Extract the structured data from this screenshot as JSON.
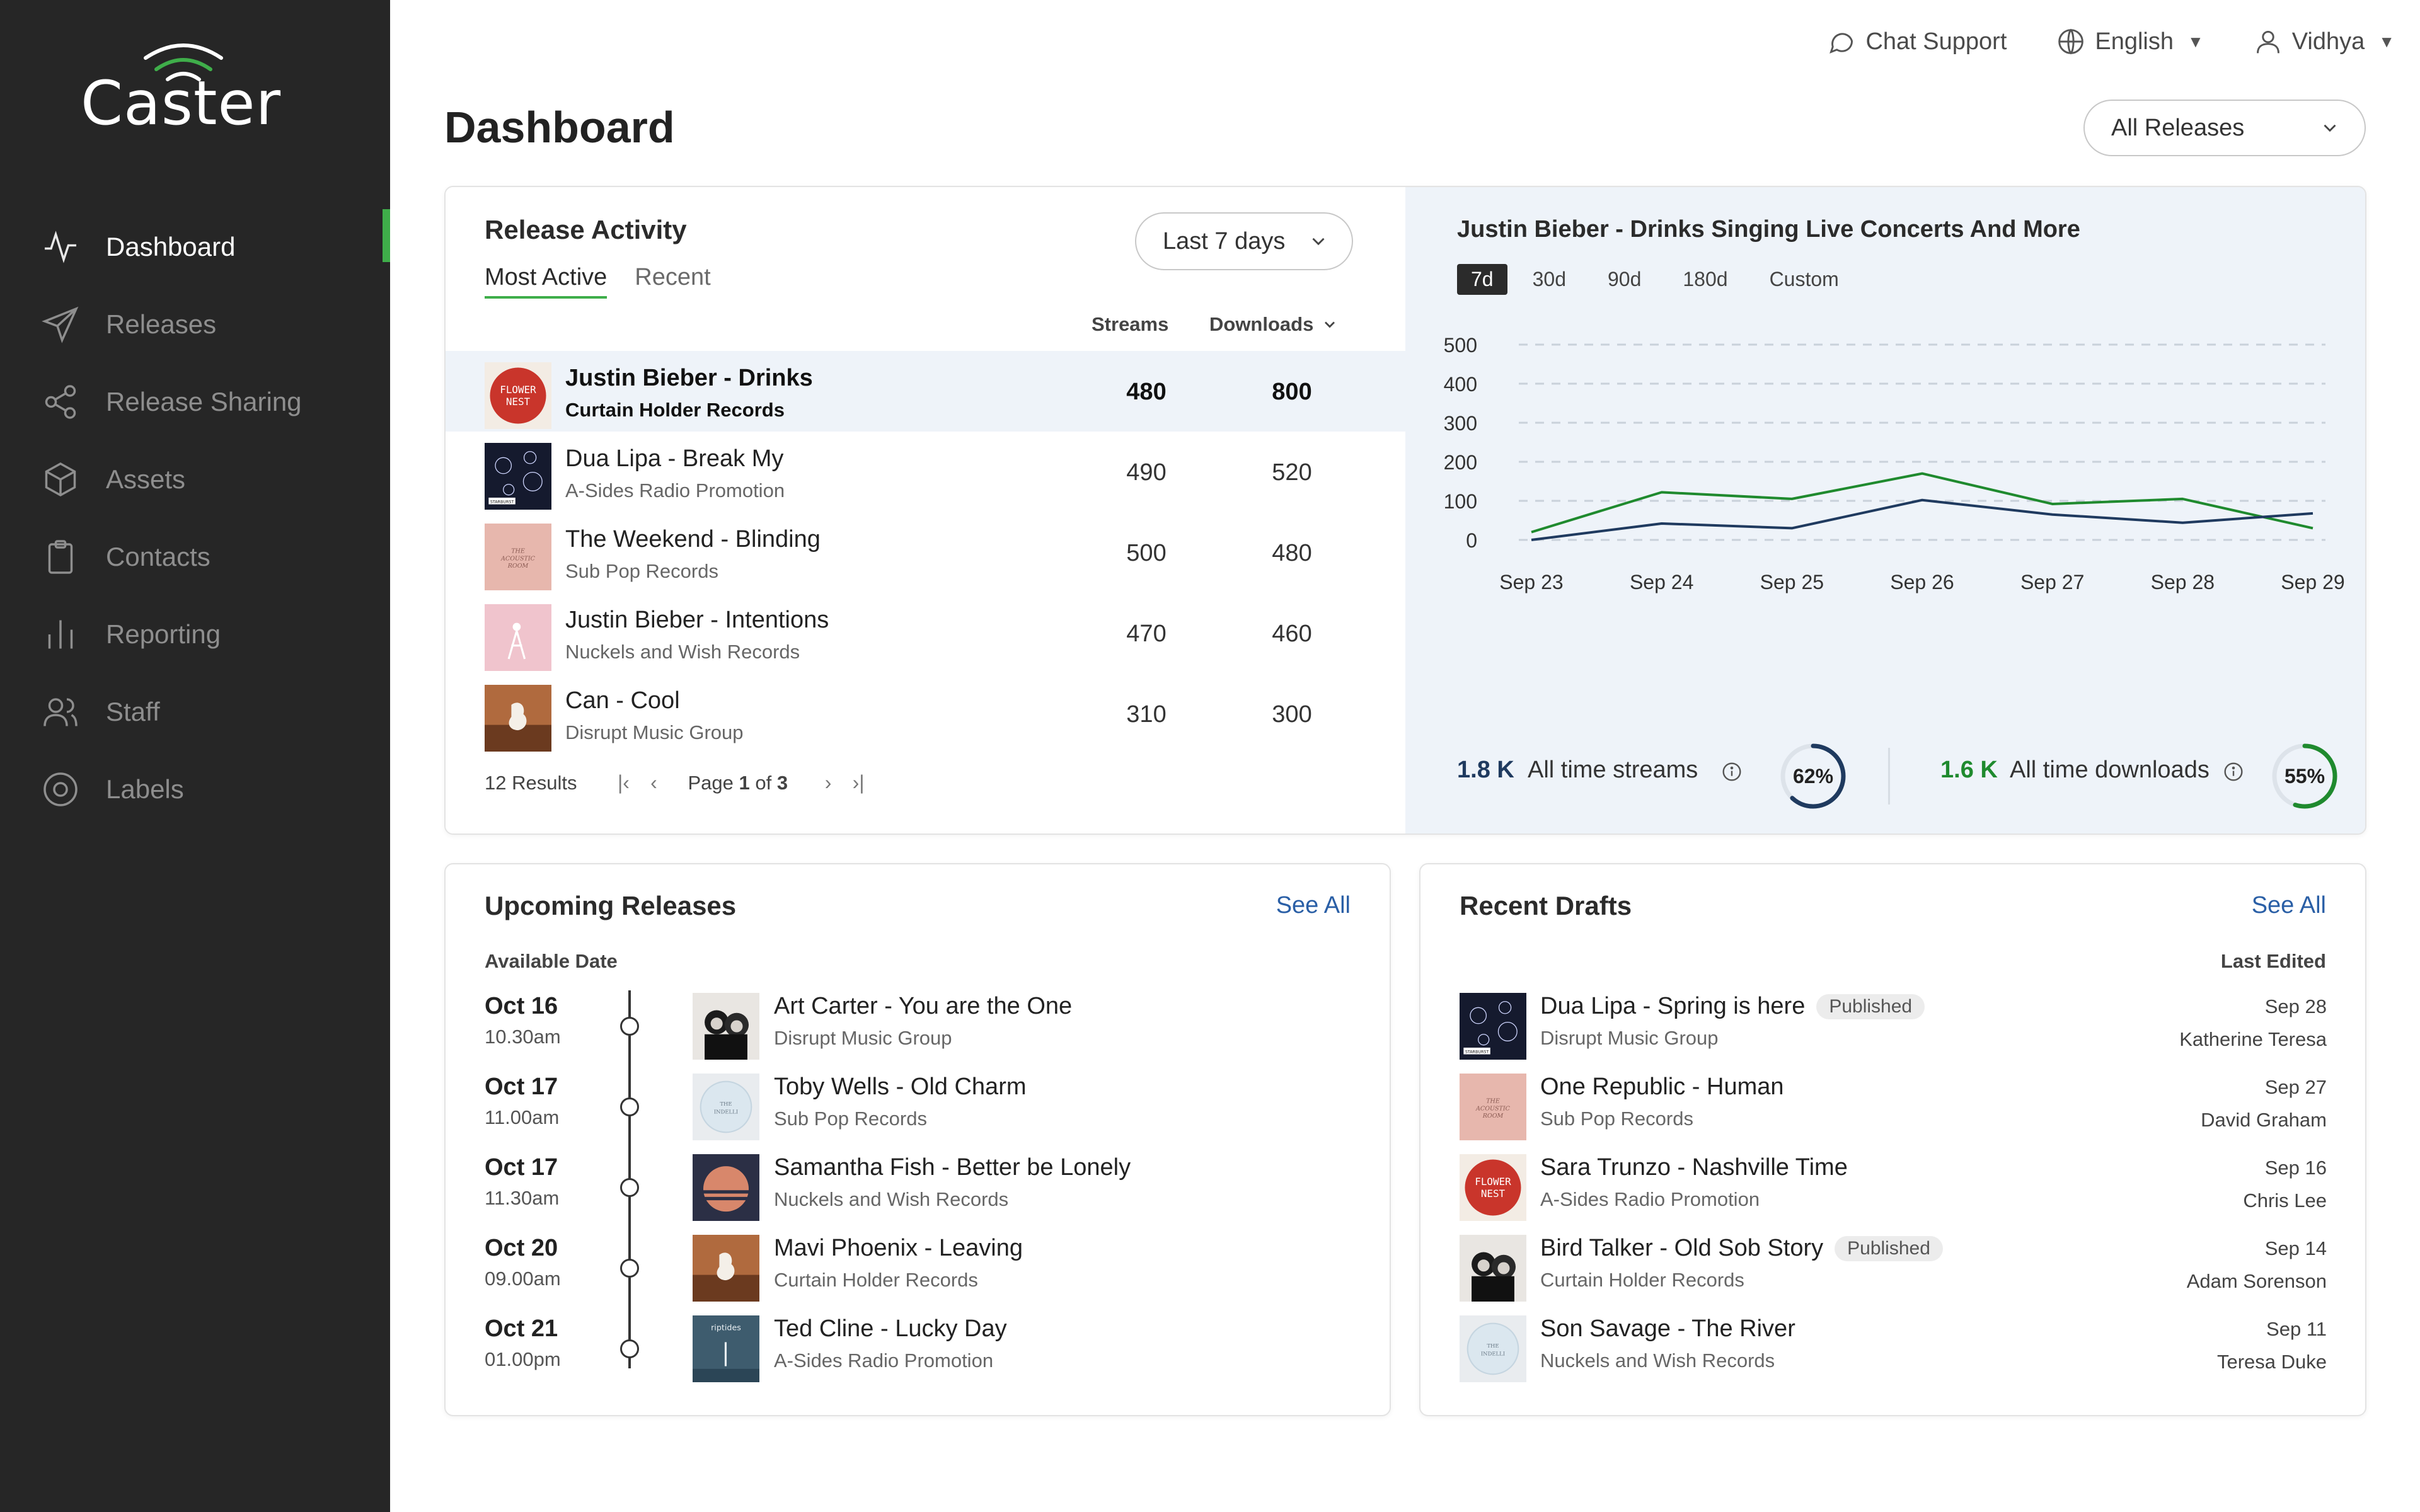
{
  "app": {
    "logo": "Caster"
  },
  "sidebar": {
    "items": [
      {
        "label": "Dashboard",
        "icon": "activity-icon",
        "active": true
      },
      {
        "label": "Releases",
        "icon": "send-icon"
      },
      {
        "label": "Release Sharing",
        "icon": "share-icon"
      },
      {
        "label": "Assets",
        "icon": "box-icon"
      },
      {
        "label": "Contacts",
        "icon": "clipboard-icon"
      },
      {
        "label": "Reporting",
        "icon": "bar-chart-icon"
      },
      {
        "label": "Staff",
        "icon": "users-icon"
      },
      {
        "label": "Labels",
        "icon": "disc-icon"
      }
    ]
  },
  "topbar": {
    "chat": "Chat Support",
    "language": "English",
    "user": "Vidhya"
  },
  "page": {
    "title": "Dashboard",
    "release_filter": "All Releases"
  },
  "release_activity": {
    "title": "Release Activity",
    "period": "Last 7 days",
    "tabs": [
      "Most Active",
      "Recent"
    ],
    "col_streams": "Streams",
    "col_downloads": "Downloads",
    "rows": [
      {
        "title": "Justin Bieber - Drinks",
        "label": "Curtain Holder Records",
        "streams": "480",
        "downloads": "800",
        "cover": "flower-nest"
      },
      {
        "title": "Dua Lipa - Break My",
        "label": "A-Sides Radio Promotion",
        "streams": "490",
        "downloads": "520",
        "cover": "fireworks"
      },
      {
        "title": "The Weekend - Blinding",
        "label": "Sub Pop Records",
        "streams": "500",
        "downloads": "480",
        "cover": "acoustic-room"
      },
      {
        "title": "Justin Bieber - Intentions",
        "label": "Nuckels and Wish Records",
        "streams": "470",
        "downloads": "460",
        "cover": "pink-tower"
      },
      {
        "title": "Can - Cool",
        "label": "Disrupt Music Group",
        "streams": "310",
        "downloads": "300",
        "cover": "bird"
      }
    ],
    "results": "12 Results",
    "page_prefix": "Page",
    "page_current": "1",
    "page_of": "of",
    "page_total": "3"
  },
  "chart": {
    "title": "Justin Bieber - Drinks Singing Live Concerts And More",
    "ranges": [
      "7d",
      "30d",
      "90d",
      "180d",
      "Custom"
    ],
    "active_range": "7d",
    "streams_total": "1.8 K",
    "streams_label": "All time streams",
    "streams_pct": "62%",
    "streams_pct_value": 62,
    "downloads_total": "1.6 K",
    "downloads_label": "All time downloads",
    "downloads_pct": "55%",
    "downloads_pct_value": 55,
    "colors": {
      "green": "#1f8a2e",
      "navy": "#1f3a5f"
    }
  },
  "chart_data": {
    "type": "line",
    "x": [
      "Sep 23",
      "Sep 24",
      "Sep 25",
      "Sep 26",
      "Sep 27",
      "Sep 28",
      "Sep 29"
    ],
    "yticks": [
      "500",
      "400",
      "300",
      "200",
      "100",
      "0"
    ],
    "ylim": [
      0,
      500
    ],
    "grid": true,
    "series": [
      {
        "color": "#1f8a2e",
        "points": [
          [
            0,
            20
          ],
          [
            1,
            122
          ],
          [
            2,
            105
          ],
          [
            3,
            170
          ],
          [
            4,
            92
          ],
          [
            5,
            105
          ],
          [
            6,
            30
          ]
        ]
      },
      {
        "color": "#1f3a5f",
        "points": [
          [
            0,
            0
          ],
          [
            1,
            42
          ],
          [
            2,
            30
          ],
          [
            3,
            102
          ],
          [
            4,
            65
          ],
          [
            5,
            44
          ],
          [
            6,
            68
          ]
        ]
      }
    ]
  },
  "upcoming": {
    "title": "Upcoming Releases",
    "see_all": "See All",
    "col_date": "Available Date",
    "rows": [
      {
        "date": "Oct 16",
        "time": "10.30am",
        "title": "Art Carter - You are the One",
        "label": "Disrupt Music Group",
        "cover": "duo-portrait"
      },
      {
        "date": "Oct 17",
        "time": "11.00am",
        "title": "Toby Wells - Old Charm",
        "label": "Sub Pop Records",
        "cover": "indie-seal"
      },
      {
        "date": "Oct 17",
        "time": "11.30am",
        "title": "Samantha Fish - Better be Lonely",
        "label": "Nuckels and Wish Records",
        "cover": "sunset"
      },
      {
        "date": "Oct 20",
        "time": "09.00am",
        "title": "Mavi Phoenix - Leaving",
        "label": "Curtain Holder Records",
        "cover": "bird"
      },
      {
        "date": "Oct 21",
        "time": "01.00pm",
        "title": "Ted Cline - Lucky Day",
        "label": "A-Sides Radio Promotion",
        "cover": "riptides"
      }
    ]
  },
  "drafts": {
    "title": "Recent Drafts",
    "see_all": "See All",
    "col_edited": "Last Edited",
    "rows": [
      {
        "title": "Dua Lipa - Spring is here",
        "badge": "Published",
        "label": "Disrupt Music Group",
        "date": "Sep 28",
        "editor": "Katherine Teresa",
        "cover": "fireworks"
      },
      {
        "title": "One Republic - Human",
        "badge": "",
        "label": "Sub Pop Records",
        "date": "Sep 27",
        "editor": "David Graham",
        "cover": "acoustic-room"
      },
      {
        "title": "Sara Trunzo - Nashville Time",
        "badge": "",
        "label": "A-Sides Radio Promotion",
        "date": "Sep 16",
        "editor": "Chris Lee",
        "cover": "flower-nest"
      },
      {
        "title": "Bird Talker - Old Sob Story",
        "badge": "Published",
        "label": "Curtain Holder Records",
        "date": "Sep 14",
        "editor": "Adam Sorenson",
        "cover": "duo-portrait"
      },
      {
        "title": "Son Savage - The River",
        "badge": "",
        "label": "Nuckels and Wish Records",
        "date": "Sep 11",
        "editor": "Teresa Duke",
        "cover": "indie-seal"
      }
    ]
  },
  "covers": {
    "flower-nest": "FLOWER NEST",
    "acoustic-room": "THE ACOUSTIC ROOM",
    "fireworks": "STARBURST",
    "indie-seal": "THE INDELLI",
    "riptides": "riptides"
  }
}
